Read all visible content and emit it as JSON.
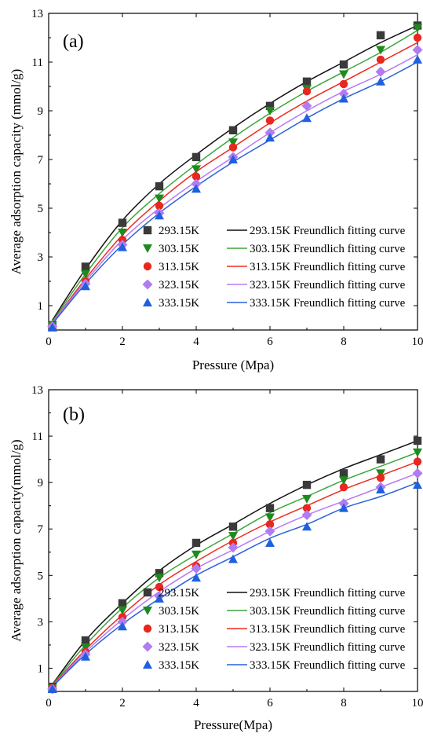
{
  "colors": {
    "293.15K": "#3a3a3a",
    "303.15K": "#1e8a1e",
    "313.15K": "#e8271f",
    "323.15K": "#b07cf0",
    "333.15K": "#1f5fe0",
    "293.15K_line": "#111111",
    "303.15K_line": "#3aa63a",
    "313.15K_line": "#ee2a20",
    "323.15K_line": "#b77af5",
    "333.15K_line": "#2a62d8"
  },
  "chart_data": [
    {
      "type": "scatter",
      "panel_label": "(a)",
      "xlabel": "Pressure (Mpa)",
      "ylabel": "Average adsorption capacity (mmol/g)",
      "xlim": [
        0,
        10
      ],
      "ylim": [
        0,
        13
      ],
      "xticks": [
        0,
        2,
        4,
        6,
        8,
        10
      ],
      "yticks": [
        1,
        3,
        5,
        7,
        9,
        11,
        13
      ],
      "legend_position": "bottom-right",
      "x": [
        0.1,
        1,
        2,
        3,
        4,
        5,
        6,
        7,
        8,
        9,
        10
      ],
      "series": [
        {
          "name": "293.15K",
          "marker": "square",
          "values": [
            0.2,
            2.6,
            4.4,
            5.9,
            7.1,
            8.2,
            9.2,
            10.2,
            10.9,
            12.1,
            12.5
          ]
        },
        {
          "name": "303.15K",
          "marker": "triangle-down",
          "values": [
            0.18,
            2.3,
            4.0,
            5.4,
            6.6,
            7.7,
            9.0,
            9.9,
            10.5,
            11.5,
            12.4
          ]
        },
        {
          "name": "313.15K",
          "marker": "circle",
          "values": [
            0.15,
            2.0,
            3.7,
            5.1,
            6.3,
            7.5,
            8.6,
            9.8,
            10.1,
            11.1,
            12.0
          ]
        },
        {
          "name": "323.15K",
          "marker": "diamond",
          "values": [
            0.15,
            1.9,
            3.5,
            4.8,
            6.0,
            7.1,
            8.1,
            9.2,
            9.7,
            10.6,
            11.5
          ]
        },
        {
          "name": "333.15K",
          "marker": "triangle-up",
          "values": [
            0.1,
            1.8,
            3.4,
            4.7,
            5.8,
            7.0,
            7.9,
            8.7,
            9.5,
            10.2,
            11.1
          ]
        }
      ],
      "fits": [
        {
          "name": "293.15K Freundlich fitting curve",
          "values": [
            0.4,
            2.5,
            4.5,
            6.0,
            7.2,
            8.3,
            9.3,
            10.2,
            11.0,
            11.8,
            12.5
          ]
        },
        {
          "name": "303.15K Freundlich fitting curve",
          "values": [
            0.35,
            2.3,
            4.2,
            5.6,
            6.8,
            7.9,
            8.9,
            9.8,
            10.6,
            11.4,
            12.3
          ]
        },
        {
          "name": "313.15K Freundlich fitting curve",
          "values": [
            0.3,
            2.1,
            3.9,
            5.3,
            6.5,
            7.5,
            8.5,
            9.4,
            10.2,
            11.0,
            11.8
          ]
        },
        {
          "name": "323.15K Freundlich fitting curve",
          "values": [
            0.3,
            2.0,
            3.7,
            5.0,
            6.1,
            7.1,
            8.1,
            9.0,
            9.8,
            10.5,
            11.3
          ]
        },
        {
          "name": "333.15K Freundlich fitting curve",
          "values": [
            0.25,
            1.9,
            3.5,
            4.8,
            5.9,
            6.9,
            7.8,
            8.7,
            9.5,
            10.2,
            11.0
          ]
        }
      ]
    },
    {
      "type": "scatter",
      "panel_label": "(b)",
      "xlabel": "Pressure(Mpa)",
      "ylabel": "Average adsorption capacity(mmol/g)",
      "xlim": [
        0,
        10
      ],
      "ylim": [
        0,
        13
      ],
      "xticks": [
        0,
        2,
        4,
        6,
        8,
        10
      ],
      "yticks": [
        1,
        3,
        5,
        7,
        9,
        11,
        13
      ],
      "legend_position": "bottom-right",
      "x": [
        0.1,
        1,
        2,
        3,
        4,
        5,
        6,
        7,
        8,
        9,
        10
      ],
      "series": [
        {
          "name": "293.15K",
          "marker": "square",
          "values": [
            0.2,
            2.2,
            3.8,
            5.1,
            6.4,
            7.1,
            7.9,
            8.9,
            9.4,
            10.0,
            10.8
          ]
        },
        {
          "name": "303.15K",
          "marker": "triangle-down",
          "values": [
            0.15,
            1.9,
            3.5,
            4.9,
            5.9,
            6.7,
            7.5,
            8.3,
            9.1,
            9.4,
            10.3
          ]
        },
        {
          "name": "313.15K",
          "marker": "circle",
          "values": [
            0.15,
            1.7,
            3.2,
            4.5,
            5.4,
            6.4,
            7.2,
            7.9,
            8.8,
            9.2,
            9.9
          ]
        },
        {
          "name": "323.15K",
          "marker": "diamond",
          "values": [
            0.1,
            1.6,
            3.0,
            4.1,
            5.3,
            6.2,
            6.9,
            7.6,
            8.1,
            8.8,
            9.4
          ]
        },
        {
          "name": "333.15K",
          "marker": "triangle-up",
          "values": [
            0.1,
            1.5,
            2.8,
            4.0,
            4.9,
            5.7,
            6.4,
            7.1,
            7.9,
            8.7,
            8.9
          ]
        }
      ],
      "fits": [
        {
          "name": "293.15K Freundlich fitting curve",
          "values": [
            0.3,
            2.2,
            3.8,
            5.2,
            6.3,
            7.2,
            8.1,
            8.9,
            9.6,
            10.2,
            10.8
          ]
        },
        {
          "name": "303.15K Freundlich fitting curve",
          "values": [
            0.28,
            2.0,
            3.6,
            4.9,
            5.9,
            6.8,
            7.7,
            8.4,
            9.1,
            9.7,
            10.3
          ]
        },
        {
          "name": "313.15K Freundlich fitting curve",
          "values": [
            0.25,
            1.8,
            3.3,
            4.6,
            5.6,
            6.5,
            7.3,
            8.0,
            8.7,
            9.3,
            9.9
          ]
        },
        {
          "name": "323.15K Freundlich fitting curve",
          "values": [
            0.22,
            1.7,
            3.1,
            4.3,
            5.3,
            6.1,
            6.9,
            7.6,
            8.2,
            8.8,
            9.4
          ]
        },
        {
          "name": "333.15K Freundlich fitting curve",
          "values": [
            0.2,
            1.6,
            2.9,
            4.0,
            5.0,
            5.8,
            6.6,
            7.2,
            7.9,
            8.4,
            9.0
          ]
        }
      ]
    }
  ]
}
